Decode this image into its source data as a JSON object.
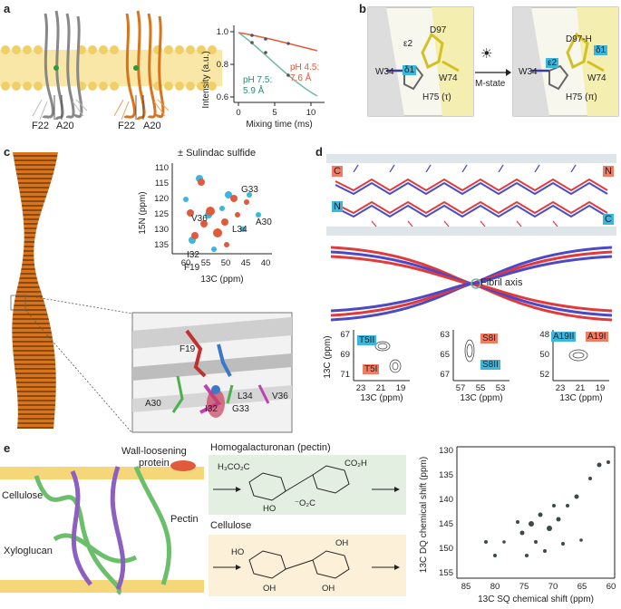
{
  "panels": {
    "a": {
      "letter": "a",
      "helix_labels": [
        "F22",
        "A20",
        "F22",
        "A20"
      ],
      "chart": {
        "ylabel": "Intensity (a.u.)",
        "xlabel": "Mixing time (ms)",
        "x_ticks": [
          "0",
          "5",
          "10"
        ],
        "y_ticks": [
          "0.6",
          "0.8",
          "1.0"
        ],
        "label_red": "pH 4.5:\n7.6 Å",
        "label_teal": "pH 7.5:\n5.9 Å"
      }
    },
    "b": {
      "letter": "b",
      "left": {
        "d97": "D97",
        "eps2": "ε2",
        "delta1": "δ1",
        "w34": "W34",
        "w74": "W74",
        "h75": "H75 (τ)"
      },
      "arrow_label": "M-state",
      "right": {
        "d97": "D97-H",
        "delta1": "δ1",
        "eps2": "ε2",
        "w34": "W34",
        "w74": "W74",
        "h75": "H75 (π)"
      }
    },
    "c": {
      "letter": "c",
      "title": "± Sulindac sulfide",
      "ylabel": "15N (ppm)",
      "xlabel": "13C (ppm)",
      "x_ticks": [
        "60",
        "55",
        "50",
        "45",
        "40"
      ],
      "y_ticks": [
        "110",
        "115",
        "120",
        "125",
        "130",
        "135"
      ],
      "peak_labels": [
        "G33",
        "V36",
        "A30",
        "L34",
        "I32",
        "F19"
      ],
      "zoom_labels": [
        "F19",
        "A30",
        "I32",
        "G33",
        "L34",
        "V36"
      ]
    },
    "d": {
      "letter": "d",
      "termini": {
        "c_top": "C",
        "n_top": "N",
        "n_bottom": "N",
        "c_bottom": "C"
      },
      "fibril_axis": "Fibril axis",
      "spectra": [
        {
          "y_ticks": [
            "67",
            "69",
            "71"
          ],
          "x_ticks": [
            "23",
            "21",
            "19"
          ],
          "labels": [
            "T5II",
            "T5I"
          ]
        },
        {
          "y_ticks": [
            "63",
            "65",
            "67"
          ],
          "x_ticks": [
            "57",
            "55",
            "53"
          ],
          "labels": [
            "S8I",
            "S8II"
          ]
        },
        {
          "y_ticks": [
            "48",
            "50",
            "52"
          ],
          "x_ticks": [
            "23",
            "21",
            "19"
          ],
          "labels": [
            "A19II",
            "A19I"
          ]
        }
      ],
      "ylabel": "13C (ppm)",
      "xlabel": "13C (ppm)"
    },
    "e": {
      "letter": "e",
      "wall_labels": {
        "protein": "Wall-loosening\nprotein",
        "cellulose": "Cellulose",
        "pectin": "Pectin",
        "xyloglucan": "Xyloglucan"
      },
      "hg_title": "Homogalacturonan (pectin)",
      "cel_title": "Cellulose",
      "chart": {
        "ylabel": "13C DQ chemical shift (ppm)",
        "xlabel": "13C SQ chemical shift (ppm)",
        "x_ticks": [
          "85",
          "80",
          "75",
          "70",
          "65",
          "60"
        ],
        "y_ticks": [
          "130",
          "135",
          "140",
          "145",
          "150",
          "155"
        ]
      }
    }
  },
  "colors": {
    "membrane": "#f5d77a",
    "helix_gray": "#8a8a8a",
    "helix_orange": "#d8741c",
    "red": "#e25a3c",
    "teal": "#6fb8a8",
    "blue_tag": "#3cb6dc",
    "red_tag": "#ef7c64",
    "green_box": "#e3f0e1",
    "yellow_box": "#fcf0d8",
    "pectin_green": "#6cbf6a",
    "xyloglucan_purple": "#8c5fc0"
  }
}
